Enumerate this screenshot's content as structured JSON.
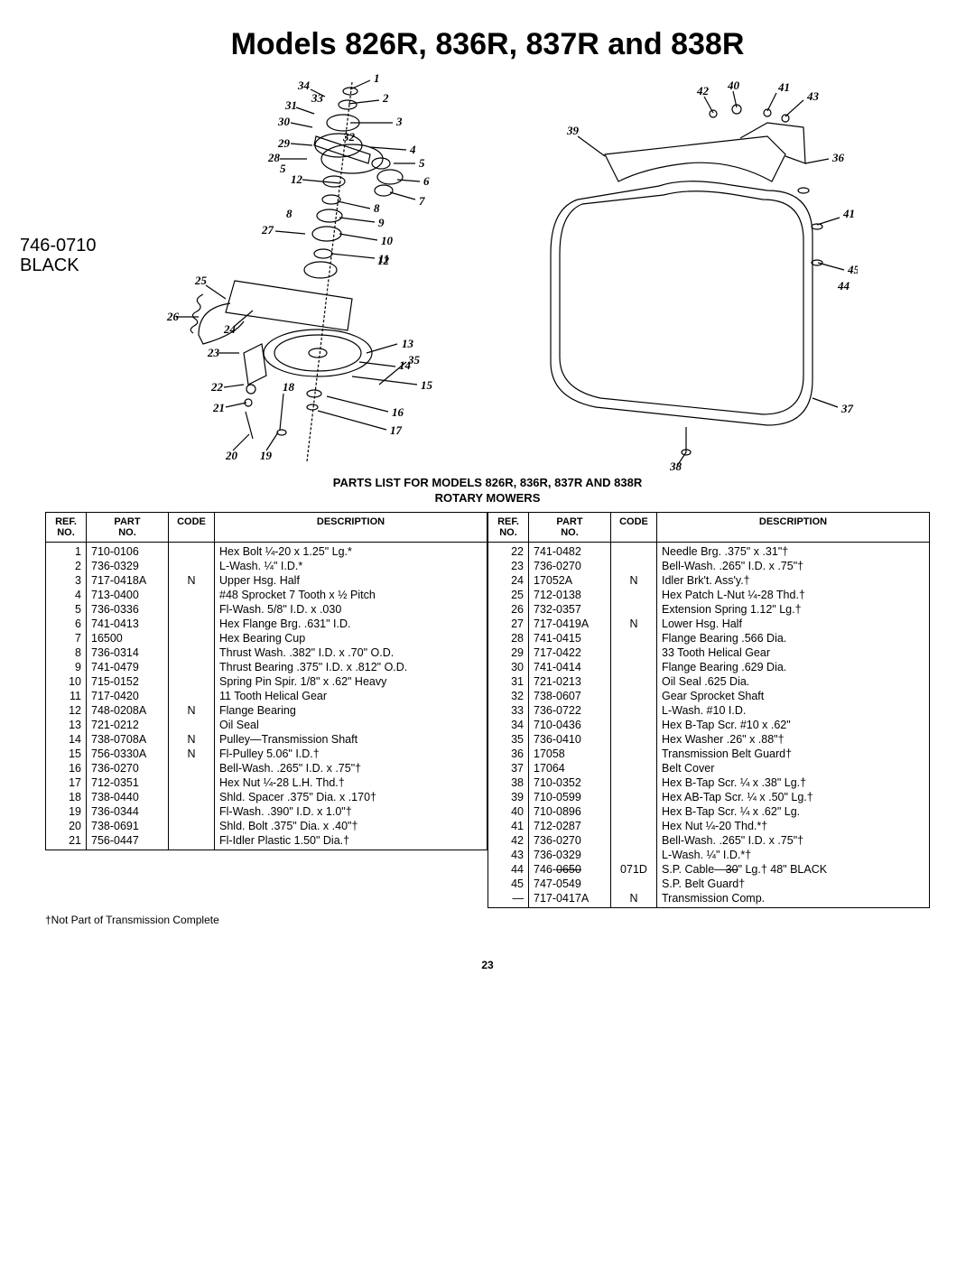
{
  "title": "Models 826R, 836R, 837R and 838R",
  "handnote1": "746-0710",
  "handnote2": "BLACK",
  "subtitle1": "PARTS LIST FOR MODELS 826R, 836R, 837R AND 838R",
  "subtitle2": "ROTARY MOWERS",
  "headers": {
    "ref": "REF.\nNO.",
    "part": "PART\nNO.",
    "code": "CODE",
    "desc": "DESCRIPTION"
  },
  "left_rows": [
    {
      "ref": "1",
      "part": "710-0106",
      "code": "",
      "desc": "Hex Bolt ¼-20 x 1.25\" Lg.*"
    },
    {
      "ref": "2",
      "part": "736-0329",
      "code": "",
      "desc": "L-Wash. ¼\" I.D.*"
    },
    {
      "ref": "3",
      "part": "717-0418A",
      "code": "N",
      "desc": "Upper Hsg. Half"
    },
    {
      "ref": "4",
      "part": "713-0400",
      "code": "",
      "desc": "#48 Sprocket 7 Tooth x ½ Pitch"
    },
    {
      "ref": "5",
      "part": "736-0336",
      "code": "",
      "desc": "Fl-Wash. 5/8\" I.D. x .030"
    },
    {
      "ref": "6",
      "part": "741-0413",
      "code": "",
      "desc": "Hex Flange Brg. .631\" I.D."
    },
    {
      "ref": "7",
      "part": "16500",
      "code": "",
      "desc": "Hex Bearing Cup"
    },
    {
      "ref": "8",
      "part": "736-0314",
      "code": "",
      "desc": "Thrust Wash. .382\" I.D. x .70\" O.D."
    },
    {
      "ref": "9",
      "part": "741-0479",
      "code": "",
      "desc": "Thrust Bearing .375\" I.D. x .812\" O.D."
    },
    {
      "ref": "10",
      "part": "715-0152",
      "code": "",
      "desc": "Spring Pin Spir. 1/8\" x .62\" Heavy"
    },
    {
      "ref": "11",
      "part": "717-0420",
      "code": "",
      "desc": "11 Tooth Helical Gear"
    },
    {
      "ref": "12",
      "part": "748-0208A",
      "code": "N",
      "desc": "Flange Bearing"
    },
    {
      "ref": "13",
      "part": "721-0212",
      "code": "",
      "desc": "Oil Seal"
    },
    {
      "ref": "14",
      "part": "738-0708A",
      "code": "N",
      "desc": "Pulley—Transmission Shaft"
    },
    {
      "ref": "15",
      "part": "756-0330A",
      "code": "N",
      "desc": "Fl-Pulley 5.06\" I.D.†"
    },
    {
      "ref": "16",
      "part": "736-0270",
      "code": "",
      "desc": "Bell-Wash. .265\" I.D. x .75\"†"
    },
    {
      "ref": "17",
      "part": "712-0351",
      "code": "",
      "desc": "Hex Nut ¼-28 L.H. Thd.†"
    },
    {
      "ref": "18",
      "part": "738-0440",
      "code": "",
      "desc": "Shld. Spacer .375\" Dia. x .170†"
    },
    {
      "ref": "19",
      "part": "736-0344",
      "code": "",
      "desc": "Fl-Wash. .390\" I.D. x 1.0\"†"
    },
    {
      "ref": "20",
      "part": "738-0691",
      "code": "",
      "desc": "Shld. Bolt .375\" Dia. x .40\"†"
    },
    {
      "ref": "21",
      "part": "756-0447",
      "code": "",
      "desc": "Fl-Idler Plastic 1.50\" Dia.†"
    }
  ],
  "right_rows": [
    {
      "ref": "22",
      "part": "741-0482",
      "code": "",
      "desc": "Needle Brg. .375\" x .31\"†"
    },
    {
      "ref": "23",
      "part": "736-0270",
      "code": "",
      "desc": "Bell-Wash. .265\" I.D. x .75\"†"
    },
    {
      "ref": "24",
      "part": "17052A",
      "code": "N",
      "desc": "Idler Brk't. Ass'y.†"
    },
    {
      "ref": "25",
      "part": "712-0138",
      "code": "",
      "desc": "Hex Patch L-Nut ¼-28 Thd.†"
    },
    {
      "ref": "26",
      "part": "732-0357",
      "code": "",
      "desc": "Extension Spring 1.12\" Lg.†"
    },
    {
      "ref": "27",
      "part": "717-0419A",
      "code": "N",
      "desc": "Lower Hsg. Half"
    },
    {
      "ref": "28",
      "part": "741-0415",
      "code": "",
      "desc": "Flange Bearing .566 Dia."
    },
    {
      "ref": "29",
      "part": "717-0422",
      "code": "",
      "desc": "33 Tooth Helical Gear"
    },
    {
      "ref": "30",
      "part": "741-0414",
      "code": "",
      "desc": "Flange Bearing .629 Dia."
    },
    {
      "ref": "31",
      "part": "721-0213",
      "code": "",
      "desc": "Oil Seal .625 Dia."
    },
    {
      "ref": "32",
      "part": "738-0607",
      "code": "",
      "desc": "Gear Sprocket Shaft"
    },
    {
      "ref": "33",
      "part": "736-0722",
      "code": "",
      "desc": "L-Wash. #10 I.D."
    },
    {
      "ref": "34",
      "part": "710-0436",
      "code": "",
      "desc": "Hex B-Tap Scr. #10 x .62\""
    },
    {
      "ref": "35",
      "part": "736-0410",
      "code": "",
      "desc": "Hex Washer .26\" x .88\"†"
    },
    {
      "ref": "36",
      "part": "17058",
      "code": "",
      "desc": "Transmission Belt Guard†"
    },
    {
      "ref": "37",
      "part": "17064",
      "code": "",
      "desc": "Belt Cover"
    },
    {
      "ref": "38",
      "part": "710-0352",
      "code": "",
      "desc": "Hex B-Tap Scr. ¼ x .38\" Lg.†"
    },
    {
      "ref": "39",
      "part": "710-0599",
      "code": "",
      "desc": "Hex AB-Tap Scr. ¼ x .50\" Lg.†"
    },
    {
      "ref": "40",
      "part": "710-0896",
      "code": "",
      "desc": "Hex B-Tap Scr. ¼ x .62\" Lg."
    },
    {
      "ref": "41",
      "part": "712-0287",
      "code": "",
      "desc": "Hex Nut ¼-20 Thd.*†"
    },
    {
      "ref": "42",
      "part": "736-0270",
      "code": "",
      "desc": "Bell-Wash. .265\" I.D. x .75\"†"
    },
    {
      "ref": "43",
      "part": "736-0329",
      "code": "",
      "desc": "L-Wash. ¼\" I.D.*†"
    },
    {
      "ref": "44",
      "part": "746-0650",
      "part_strike": true,
      "hand": "071D",
      "code": "",
      "desc": "S.P. Cable—30\" Lg.†",
      "desc_strike": "30",
      "hand_desc": "48\" BLACK"
    },
    {
      "ref": "45",
      "part": "747-0549",
      "code": "",
      "desc": "S.P. Belt Guard†"
    },
    {
      "ref": "—",
      "part": "717-0417A",
      "code": "N",
      "desc": "Transmission Comp."
    }
  ],
  "footnote": "†Not Part of Transmission Complete",
  "pagenum": "23",
  "left_callouts": [
    "1",
    "2",
    "3",
    "4",
    "5",
    "6",
    "7",
    "8",
    "9",
    "10",
    "11",
    "12",
    "13",
    "14",
    "15",
    "16",
    "17",
    "18",
    "19",
    "20",
    "21",
    "22",
    "23",
    "24",
    "25",
    "26",
    "27",
    "28",
    "29",
    "30",
    "31",
    "32",
    "33",
    "34",
    "35"
  ],
  "right_callouts": [
    "36",
    "37",
    "38",
    "39",
    "40",
    "41",
    "42",
    "43",
    "44",
    "45"
  ]
}
